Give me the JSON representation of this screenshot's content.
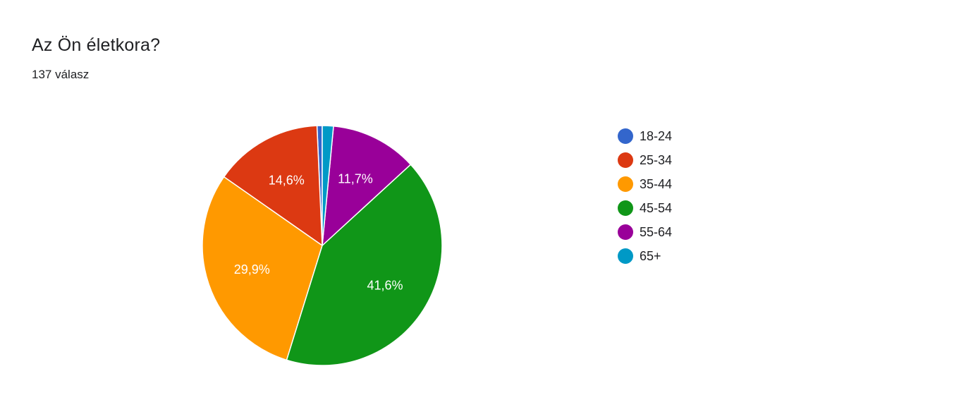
{
  "header": {
    "title": "Az Ön életkora?",
    "response_count": "137 válasz"
  },
  "chart_data": {
    "type": "pie",
    "categories": [
      "18-24",
      "25-34",
      "35-44",
      "45-54",
      "55-64",
      "65+"
    ],
    "values": [
      0.7,
      14.6,
      29.9,
      41.6,
      11.7,
      1.5
    ],
    "percent_labels": [
      "",
      "14,6%",
      "29,9%",
      "41,6%",
      "11,7%",
      ""
    ],
    "colors": [
      "#3366cc",
      "#dc3912",
      "#ff9900",
      "#109618",
      "#990099",
      "#0099c6"
    ],
    "legend_position": "right",
    "label_color": "#ffffff"
  }
}
